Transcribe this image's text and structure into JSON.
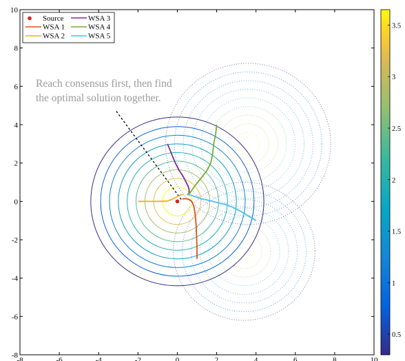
{
  "chart_data": {
    "type": "line",
    "title": "",
    "xlabel": "",
    "ylabel": "",
    "xlim": [
      -8,
      10
    ],
    "ylim": [
      -8,
      10
    ],
    "xticks": [
      -8,
      -6,
      -4,
      -2,
      0,
      2,
      4,
      6,
      8,
      10
    ],
    "yticks": [
      -8,
      -6,
      -4,
      -2,
      0,
      2,
      4,
      6,
      8,
      10
    ],
    "grid": false,
    "legend_position": "top-left",
    "annotation": {
      "lines": [
        "Reach consensus first, then find",
        "the optimal solution together."
      ],
      "color": "#9a9a9a",
      "arrow_from": [
        -3.1,
        4.7
      ],
      "arrow_to": [
        0.2,
        0.1
      ]
    },
    "source": {
      "name": "Source",
      "x": 0,
      "y": 0,
      "color": "#e02020"
    },
    "series": [
      {
        "name": "WSA 1",
        "color": "#d95319",
        "x": [
          1.0,
          1.0,
          0.98,
          0.96,
          0.93,
          0.9,
          0.85,
          0.78,
          0.68,
          0.55,
          0.4,
          0.25
        ],
        "y": [
          -3.0,
          -2.4,
          -1.8,
          -1.3,
          -0.9,
          -0.6,
          -0.3,
          -0.08,
          0.06,
          0.12,
          0.14,
          0.13
        ]
      },
      {
        "name": "WSA 2",
        "color": "#edb120",
        "x": [
          -2.0,
          -1.5,
          -1.0,
          -0.5,
          -0.3,
          -0.1,
          0.1,
          0.2,
          0.3
        ],
        "y": [
          0.0,
          0.0,
          0.0,
          0.02,
          0.1,
          0.2,
          0.3,
          0.35,
          0.35
        ]
      },
      {
        "name": "WSA 3",
        "color": "#7e2f8e",
        "x": [
          -0.5,
          -0.3,
          -0.1,
          0.1,
          0.3,
          0.45,
          0.55,
          0.6,
          0.6,
          0.55,
          0.5
        ],
        "y": [
          3.0,
          2.5,
          2.0,
          1.6,
          1.3,
          1.0,
          0.8,
          0.6,
          0.45,
          0.38,
          0.35
        ]
      },
      {
        "name": "WSA 4",
        "color": "#77ac30",
        "x": [
          2.0,
          1.95,
          1.85,
          1.8,
          1.7,
          1.5,
          1.2,
          1.0,
          0.85,
          0.75,
          0.65,
          0.55,
          0.5
        ],
        "y": [
          4.0,
          3.5,
          3.0,
          2.5,
          2.0,
          1.6,
          1.2,
          0.95,
          0.75,
          0.6,
          0.45,
          0.38,
          0.35
        ]
      },
      {
        "name": "WSA 5",
        "color": "#4dbeee",
        "x": [
          4.0,
          3.6,
          3.2,
          2.8,
          2.4,
          2.0,
          1.6,
          1.2,
          0.9,
          0.7,
          0.55
        ],
        "y": [
          -1.0,
          -0.75,
          -0.5,
          -0.3,
          -0.15,
          -0.05,
          0.05,
          0.15,
          0.25,
          0.32,
          0.35
        ]
      }
    ],
    "contours": {
      "solid": {
        "center": [
          0,
          0
        ],
        "levels": [
          0.5,
          1.0,
          1.5,
          2.0,
          2.5,
          3.0,
          3.5
        ],
        "radii": [
          4.4,
          3.9,
          3.45,
          3.0,
          2.55,
          2.1,
          1.65,
          1.2,
          0.75
        ]
      },
      "dotted": [
        {
          "center": [
            3.6,
            3.0
          ],
          "radii": [
            4.2,
            3.75,
            3.3,
            2.85,
            2.4,
            1.95,
            1.5,
            1.05,
            0.6
          ]
        },
        {
          "center": [
            3.4,
            -2.6
          ],
          "radii": [
            3.6,
            3.15,
            2.7,
            2.25,
            1.8,
            1.35,
            0.9,
            0.45
          ]
        }
      ]
    },
    "colorbar": {
      "range": [
        0.3,
        3.65
      ],
      "ticks": [
        0.5,
        1,
        1.5,
        2,
        2.5,
        3,
        3.5
      ],
      "tick_labels": [
        "0.5",
        "1",
        "1.5",
        "2",
        "2.5",
        "3",
        "3.5"
      ],
      "colormap": "parula"
    }
  }
}
